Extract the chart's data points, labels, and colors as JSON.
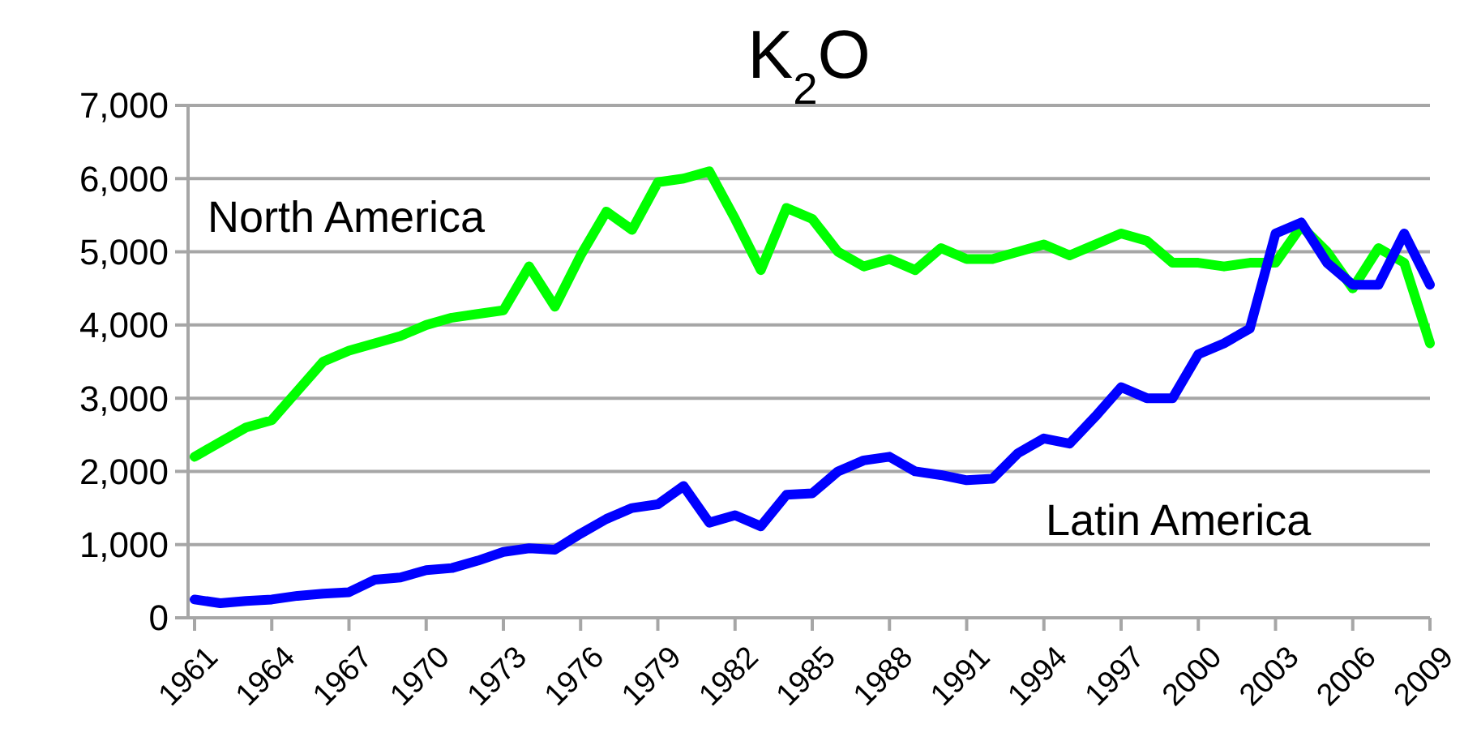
{
  "chart_data": {
    "type": "line",
    "title": "K$_{2}$O",
    "categories": [
      "1961",
      null,
      null,
      "1964",
      null,
      null,
      "1967",
      null,
      null,
      "1970",
      null,
      null,
      "1973",
      null,
      null,
      "1976",
      null,
      null,
      "1979",
      null,
      null,
      "1982",
      null,
      null,
      "1985",
      null,
      null,
      "1988",
      null,
      null,
      "1991",
      null,
      null,
      "1994",
      null,
      null,
      "1997",
      null,
      null,
      "2000",
      null,
      null,
      "2003",
      null,
      null,
      "2006",
      null,
      null,
      "2009"
    ],
    "series": [
      {
        "name": "North America",
        "color": "#00ff00",
        "values": [
          2200,
          2400,
          2600,
          2700,
          3100,
          3500,
          3650,
          3750,
          3850,
          4000,
          4100,
          4150,
          4200,
          4800,
          4250,
          4950,
          5550,
          5300,
          5950,
          6000,
          6100,
          5450,
          4750,
          5600,
          5450,
          5000,
          4800,
          4900,
          4750,
          5050,
          4900,
          4900,
          5000,
          5100,
          4950,
          5100,
          5250,
          5150,
          4850,
          4850,
          4800,
          4850,
          4850,
          5350,
          5000,
          4500,
          5050,
          4850,
          3750
        ]
      },
      {
        "name": "Latin America",
        "color": "#0000ff",
        "values": [
          250,
          200,
          230,
          250,
          300,
          330,
          350,
          520,
          550,
          650,
          680,
          780,
          900,
          950,
          930,
          1150,
          1350,
          1500,
          1550,
          1800,
          1300,
          1400,
          1250,
          1680,
          1700,
          2000,
          2150,
          2200,
          2000,
          1950,
          1880,
          1900,
          2250,
          2450,
          2380,
          2750,
          3150,
          3000,
          3000,
          3600,
          3750,
          3950,
          5250,
          5400,
          4850,
          4550,
          4550,
          5250,
          4550
        ]
      }
    ],
    "ylim": [
      0,
      7000
    ],
    "yticks": [
      {
        "value": 0,
        "label": "0"
      },
      {
        "value": 1000,
        "label": "1,000"
      },
      {
        "value": 2000,
        "label": "2,000"
      },
      {
        "value": 3000,
        "label": "3,000"
      },
      {
        "value": 4000,
        "label": "4,000"
      },
      {
        "value": 5000,
        "label": "5,000"
      },
      {
        "value": 6000,
        "label": "6,000"
      },
      {
        "value": 7000,
        "label": "7,000"
      }
    ],
    "grid": "y",
    "marker": "none",
    "line_style": "solid"
  }
}
